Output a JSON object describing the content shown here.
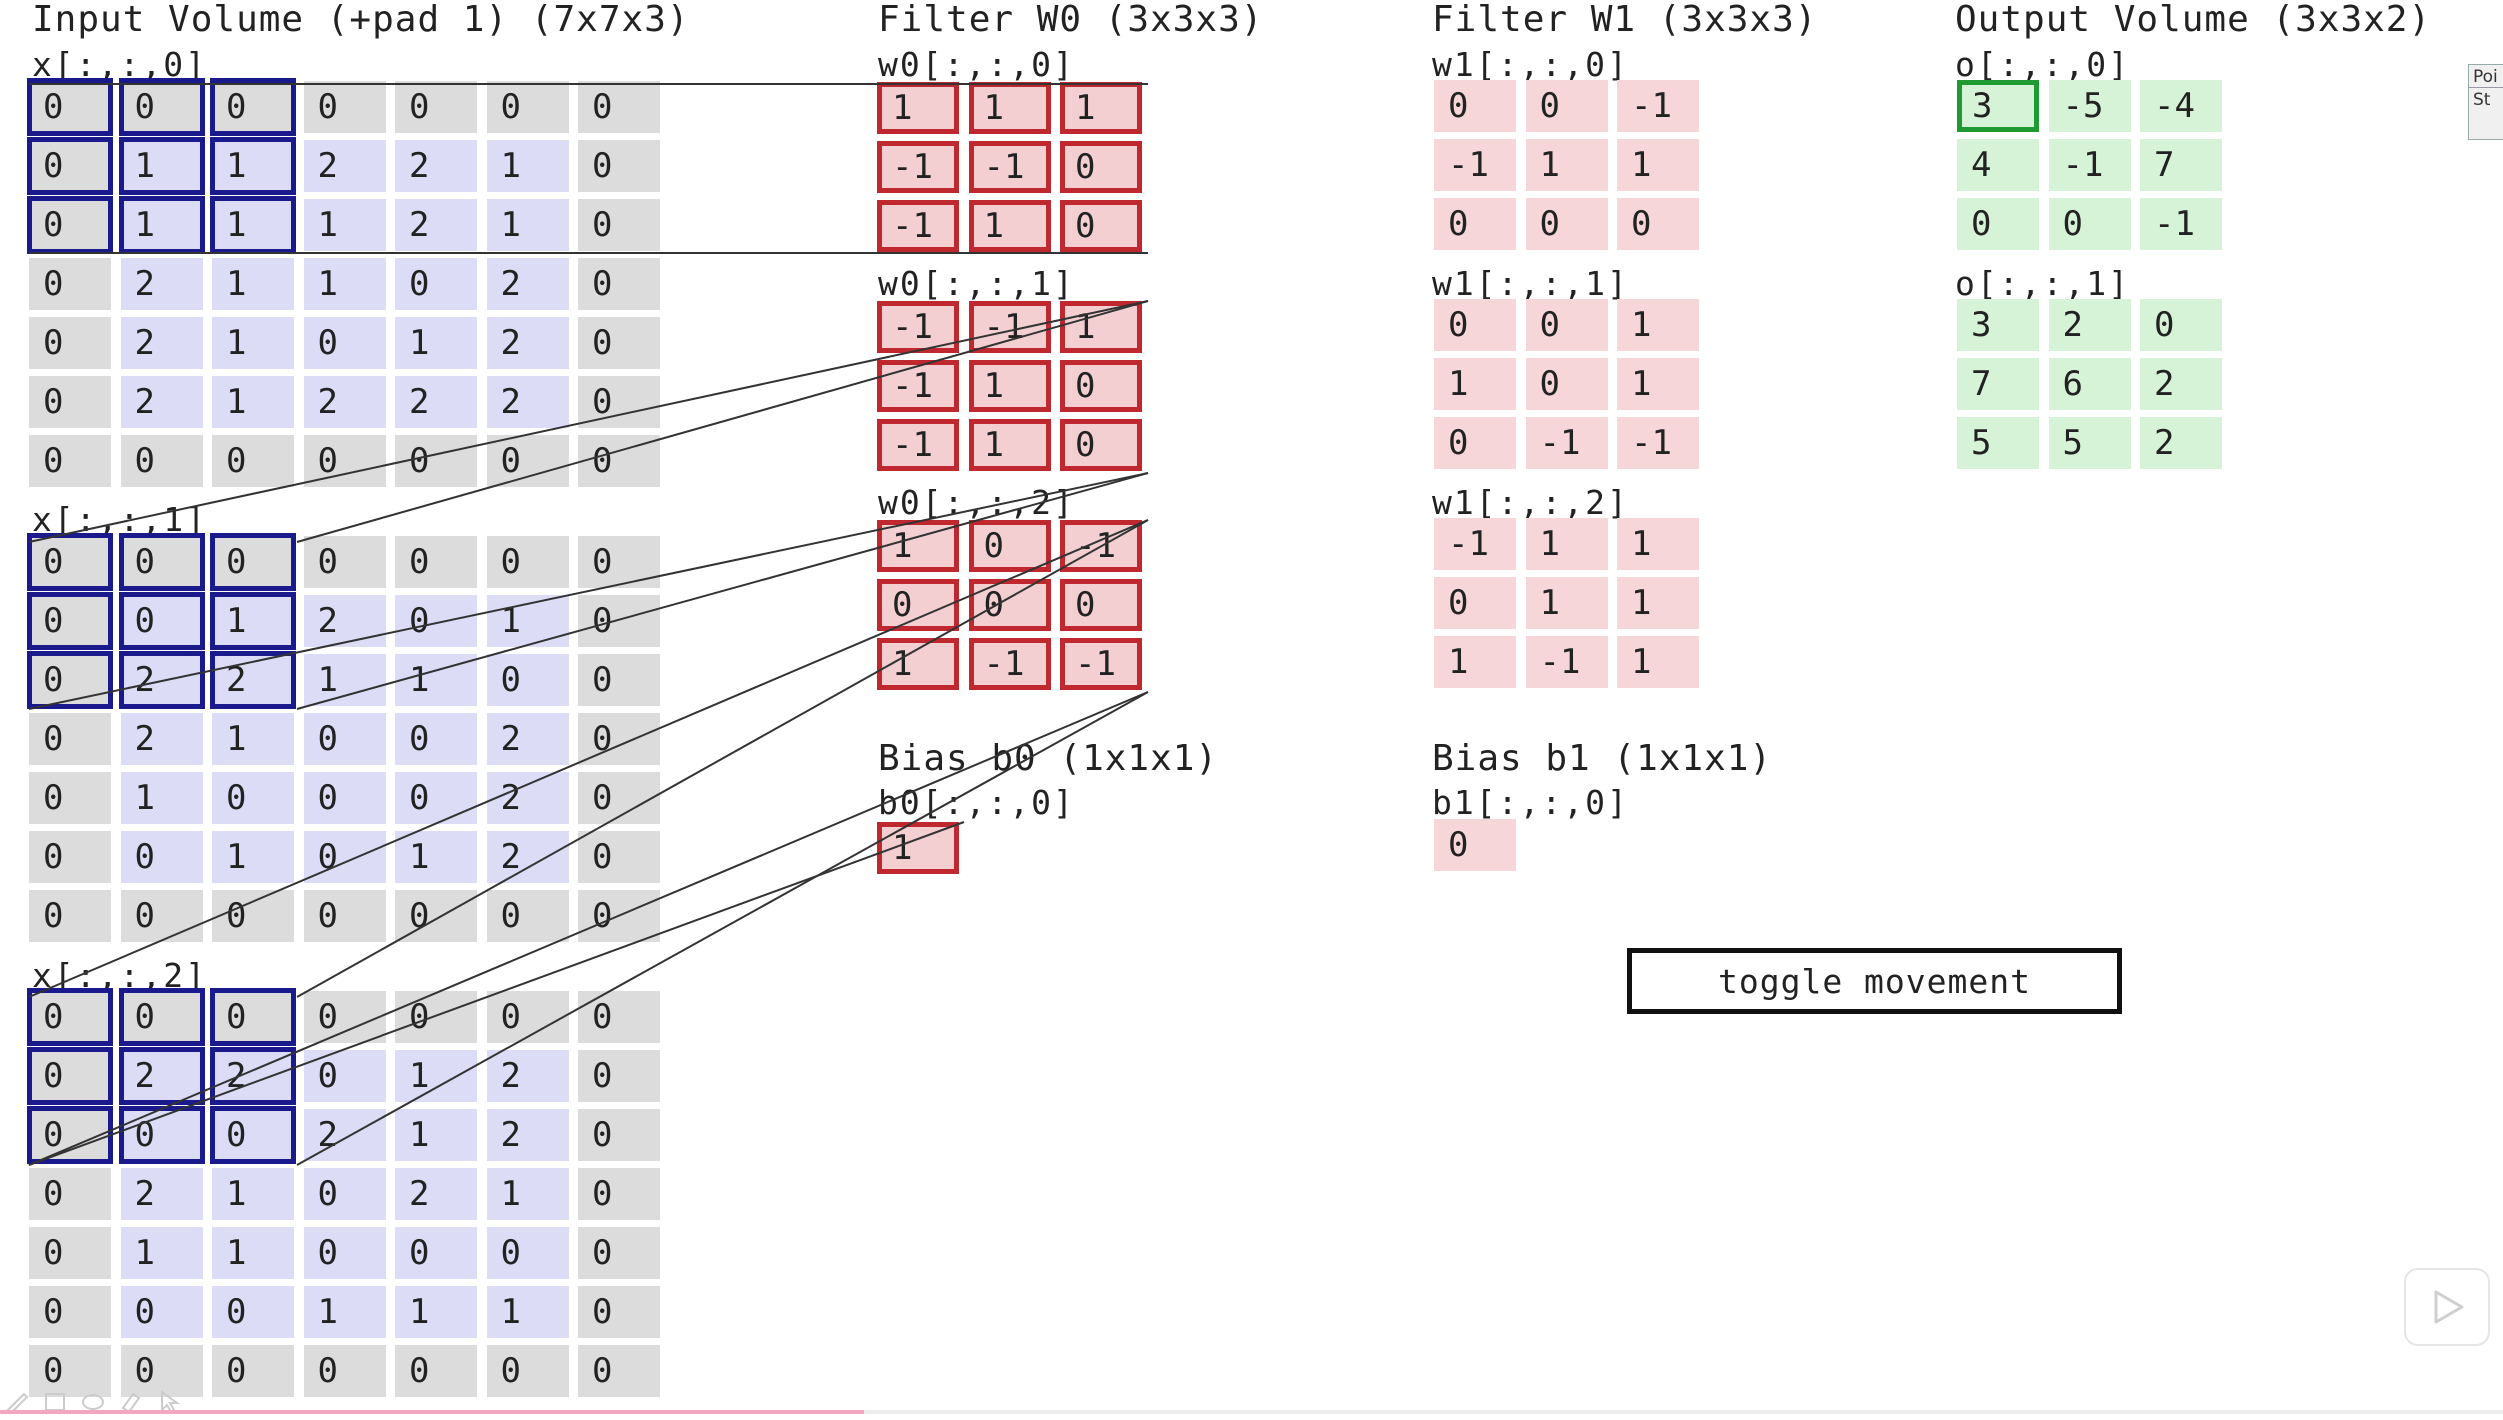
{
  "headers": {
    "input": "Input Volume (+pad 1) (7x7x3)",
    "filter0": "Filter W0 (3x3x3)",
    "filter1": "Filter W1 (3x3x3)",
    "output": "Output Volume (3x3x2)",
    "bias0": "Bias b0 (1x1x1)",
    "bias1": "Bias b1 (1x1x1)"
  },
  "input": {
    "labels": [
      "x[:,:,0]",
      "x[:,:,1]",
      "x[:,:,2]"
    ],
    "slices": [
      [
        [
          "0",
          "0",
          "0",
          "0",
          "0",
          "0",
          "0"
        ],
        [
          "0",
          "1",
          "1",
          "2",
          "2",
          "1",
          "0"
        ],
        [
          "0",
          "1",
          "1",
          "1",
          "2",
          "1",
          "0"
        ],
        [
          "0",
          "2",
          "1",
          "1",
          "0",
          "2",
          "0"
        ],
        [
          "0",
          "2",
          "1",
          "0",
          "1",
          "2",
          "0"
        ],
        [
          "0",
          "2",
          "1",
          "2",
          "2",
          "2",
          "0"
        ],
        [
          "0",
          "0",
          "0",
          "0",
          "0",
          "0",
          "0"
        ]
      ],
      [
        [
          "0",
          "0",
          "0",
          "0",
          "0",
          "0",
          "0"
        ],
        [
          "0",
          "0",
          "1",
          "2",
          "0",
          "1",
          "0"
        ],
        [
          "0",
          "2",
          "2",
          "1",
          "1",
          "0",
          "0"
        ],
        [
          "0",
          "2",
          "1",
          "0",
          "0",
          "2",
          "0"
        ],
        [
          "0",
          "1",
          "0",
          "0",
          "0",
          "2",
          "0"
        ],
        [
          "0",
          "0",
          "1",
          "0",
          "1",
          "2",
          "0"
        ],
        [
          "0",
          "0",
          "0",
          "0",
          "0",
          "0",
          "0"
        ]
      ],
      [
        [
          "0",
          "0",
          "0",
          "0",
          "0",
          "0",
          "0"
        ],
        [
          "0",
          "2",
          "2",
          "0",
          "1",
          "2",
          "0"
        ],
        [
          "0",
          "0",
          "0",
          "2",
          "1",
          "2",
          "0"
        ],
        [
          "0",
          "2",
          "1",
          "0",
          "2",
          "1",
          "0"
        ],
        [
          "0",
          "1",
          "1",
          "0",
          "0",
          "0",
          "0"
        ],
        [
          "0",
          "0",
          "0",
          "1",
          "1",
          "1",
          "0"
        ],
        [
          "0",
          "0",
          "0",
          "0",
          "0",
          "0",
          "0"
        ]
      ]
    ]
  },
  "w0": {
    "labels": [
      "w0[:,:,0]",
      "w0[:,:,1]",
      "w0[:,:,2]"
    ],
    "slices": [
      [
        [
          "1",
          "1",
          "1"
        ],
        [
          "-1",
          "-1",
          "0"
        ],
        [
          "-1",
          "1",
          "0"
        ]
      ],
      [
        [
          "-1",
          "-1",
          "1"
        ],
        [
          "-1",
          "1",
          "0"
        ],
        [
          "-1",
          "1",
          "0"
        ]
      ],
      [
        [
          "1",
          "0",
          "-1"
        ],
        [
          "0",
          "0",
          "0"
        ],
        [
          "1",
          "-1",
          "-1"
        ]
      ]
    ]
  },
  "w1": {
    "labels": [
      "w1[:,:,0]",
      "w1[:,:,1]",
      "w1[:,:,2]"
    ],
    "slices": [
      [
        [
          "0",
          "0",
          "-1"
        ],
        [
          "-1",
          "1",
          "1"
        ],
        [
          "0",
          "0",
          "0"
        ]
      ],
      [
        [
          "0",
          "0",
          "1"
        ],
        [
          "1",
          "0",
          "1"
        ],
        [
          "0",
          "-1",
          "-1"
        ]
      ],
      [
        [
          "-1",
          "1",
          "1"
        ],
        [
          "0",
          "1",
          "1"
        ],
        [
          "1",
          "-1",
          "1"
        ]
      ]
    ]
  },
  "bias0": {
    "label": "b0[:,:,0]",
    "value": "1"
  },
  "bias1": {
    "label": "b1[:,:,0]",
    "value": "0"
  },
  "output": {
    "labels": [
      "o[:,:,0]",
      "o[:,:,1]"
    ],
    "slices": [
      [
        [
          "3",
          "-5",
          "-4"
        ],
        [
          "4",
          "-1",
          "7"
        ],
        [
          "0",
          "0",
          "-1"
        ]
      ],
      [
        [
          "3",
          "2",
          "0"
        ],
        [
          "7",
          "6",
          "2"
        ],
        [
          "5",
          "5",
          "2"
        ]
      ]
    ]
  },
  "toggle_label": "toggle movement",
  "side_panel": {
    "tab1": "Poi",
    "tab2": "St"
  },
  "video_progress": 0.345,
  "icons": {
    "play": "play-icon",
    "annotations": [
      "pen-icon",
      "box-icon",
      "eraser-icon",
      "marker-icon",
      "pointer-icon"
    ]
  }
}
